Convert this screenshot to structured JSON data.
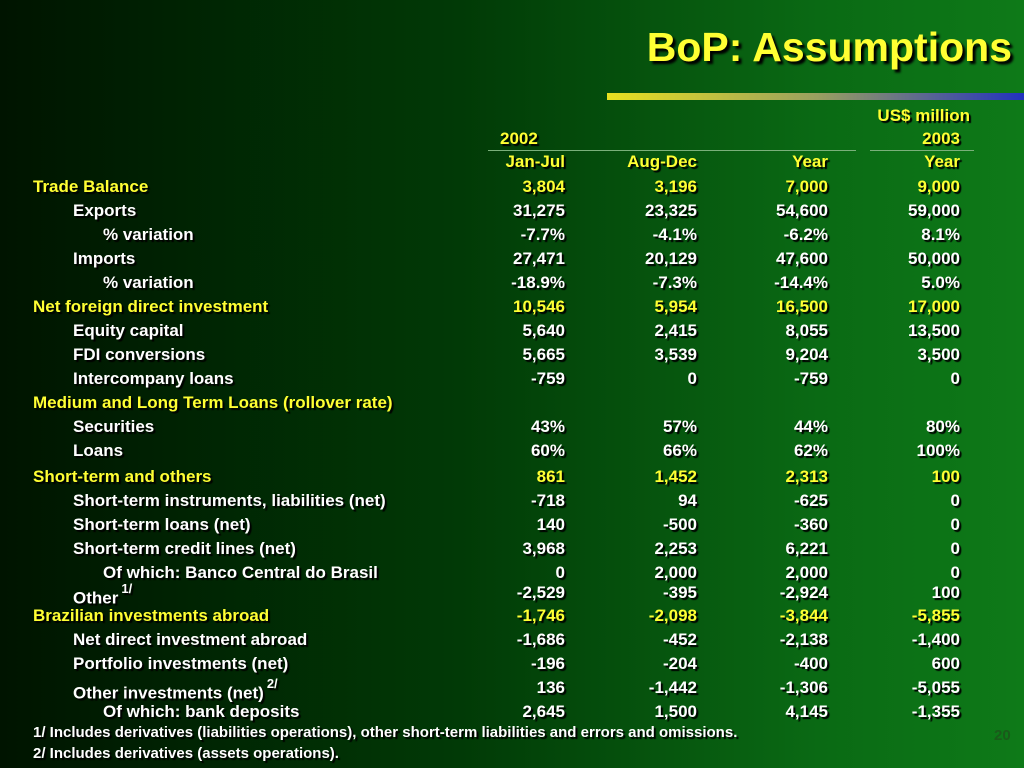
{
  "header": {
    "title": "BoP: Assumptions",
    "unit": "US$ million"
  },
  "table": {
    "years": [
      "2002",
      "2003"
    ],
    "columns": [
      "Jan-Jul",
      "Aug-Dec",
      "Year",
      "Year"
    ],
    "rows": [
      {
        "label": "Trade Balance",
        "values": [
          "3,804",
          "3,196",
          "7,000",
          "9,000"
        ]
      },
      {
        "label": "Exports",
        "values": [
          "31,275",
          "23,325",
          "54,600",
          "59,000"
        ]
      },
      {
        "label": "% variation",
        "values": [
          "-7.7%",
          "-4.1%",
          "-6.2%",
          "8.1%"
        ]
      },
      {
        "label": "Imports",
        "values": [
          "27,471",
          "20,129",
          "47,600",
          "50,000"
        ]
      },
      {
        "label": "% variation",
        "values": [
          "-18.9%",
          "-7.3%",
          "-14.4%",
          "5.0%"
        ]
      },
      {
        "label": "Net foreign direct investment",
        "values": [
          "10,546",
          "5,954",
          "16,500",
          "17,000"
        ]
      },
      {
        "label": "Equity capital",
        "values": [
          "5,640",
          "2,415",
          "8,055",
          "13,500"
        ]
      },
      {
        "label": "FDI conversions",
        "values": [
          "5,665",
          "3,539",
          "9,204",
          "3,500"
        ]
      },
      {
        "label": "Intercompany loans",
        "values": [
          "-759",
          "0",
          "-759",
          "0"
        ]
      },
      {
        "label": "Medium and Long Term Loans (rollover rate)",
        "values": []
      },
      {
        "label": "Securities",
        "values": [
          "43%",
          "57%",
          "44%",
          "80%"
        ]
      },
      {
        "label": "Loans",
        "values": [
          "60%",
          "66%",
          "62%",
          "100%"
        ]
      },
      {
        "label": "Short-term and others",
        "values": [
          "861",
          "1,452",
          "2,313",
          "100"
        ]
      },
      {
        "label": "Short-term instruments, liabilities (net)",
        "values": [
          "-718",
          "94",
          "-625",
          "0"
        ]
      },
      {
        "label": "Short-term loans (net)",
        "values": [
          "140",
          "-500",
          "-360",
          "0"
        ]
      },
      {
        "label": "Short-term credit lines (net)",
        "values": [
          "3,968",
          "2,253",
          "6,221",
          "0"
        ]
      },
      {
        "label": "Of which: Banco Central do Brasil",
        "values": [
          "0",
          "2,000",
          "2,000",
          "0"
        ]
      },
      {
        "label": "Other",
        "note": "1/",
        "values": [
          "-2,529",
          "-395",
          "-2,924",
          "100"
        ]
      },
      {
        "label": "Brazilian investments abroad",
        "values": [
          "-1,746",
          "-2,098",
          "-3,844",
          "-5,855"
        ]
      },
      {
        "label": "Net direct investment abroad",
        "values": [
          "-1,686",
          "-452",
          "-2,138",
          "-1,400"
        ]
      },
      {
        "label": "Portfolio investments (net)",
        "values": [
          "-196",
          "-204",
          "-400",
          "600"
        ]
      },
      {
        "label": "Other investments (net)",
        "note": "2/",
        "values": [
          "136",
          "-1,442",
          "-1,306",
          "-5,055"
        ]
      },
      {
        "label": "Of which: bank deposits",
        "values": [
          "2,645",
          "1,500",
          "4,145",
          "-1,355"
        ]
      }
    ]
  },
  "footnotes": [
    "1/ Includes derivatives (liabilities operations), other short-term liabilities and errors and omissions.",
    "2/ Includes derivatives (assets operations)."
  ],
  "page_number": "20"
}
